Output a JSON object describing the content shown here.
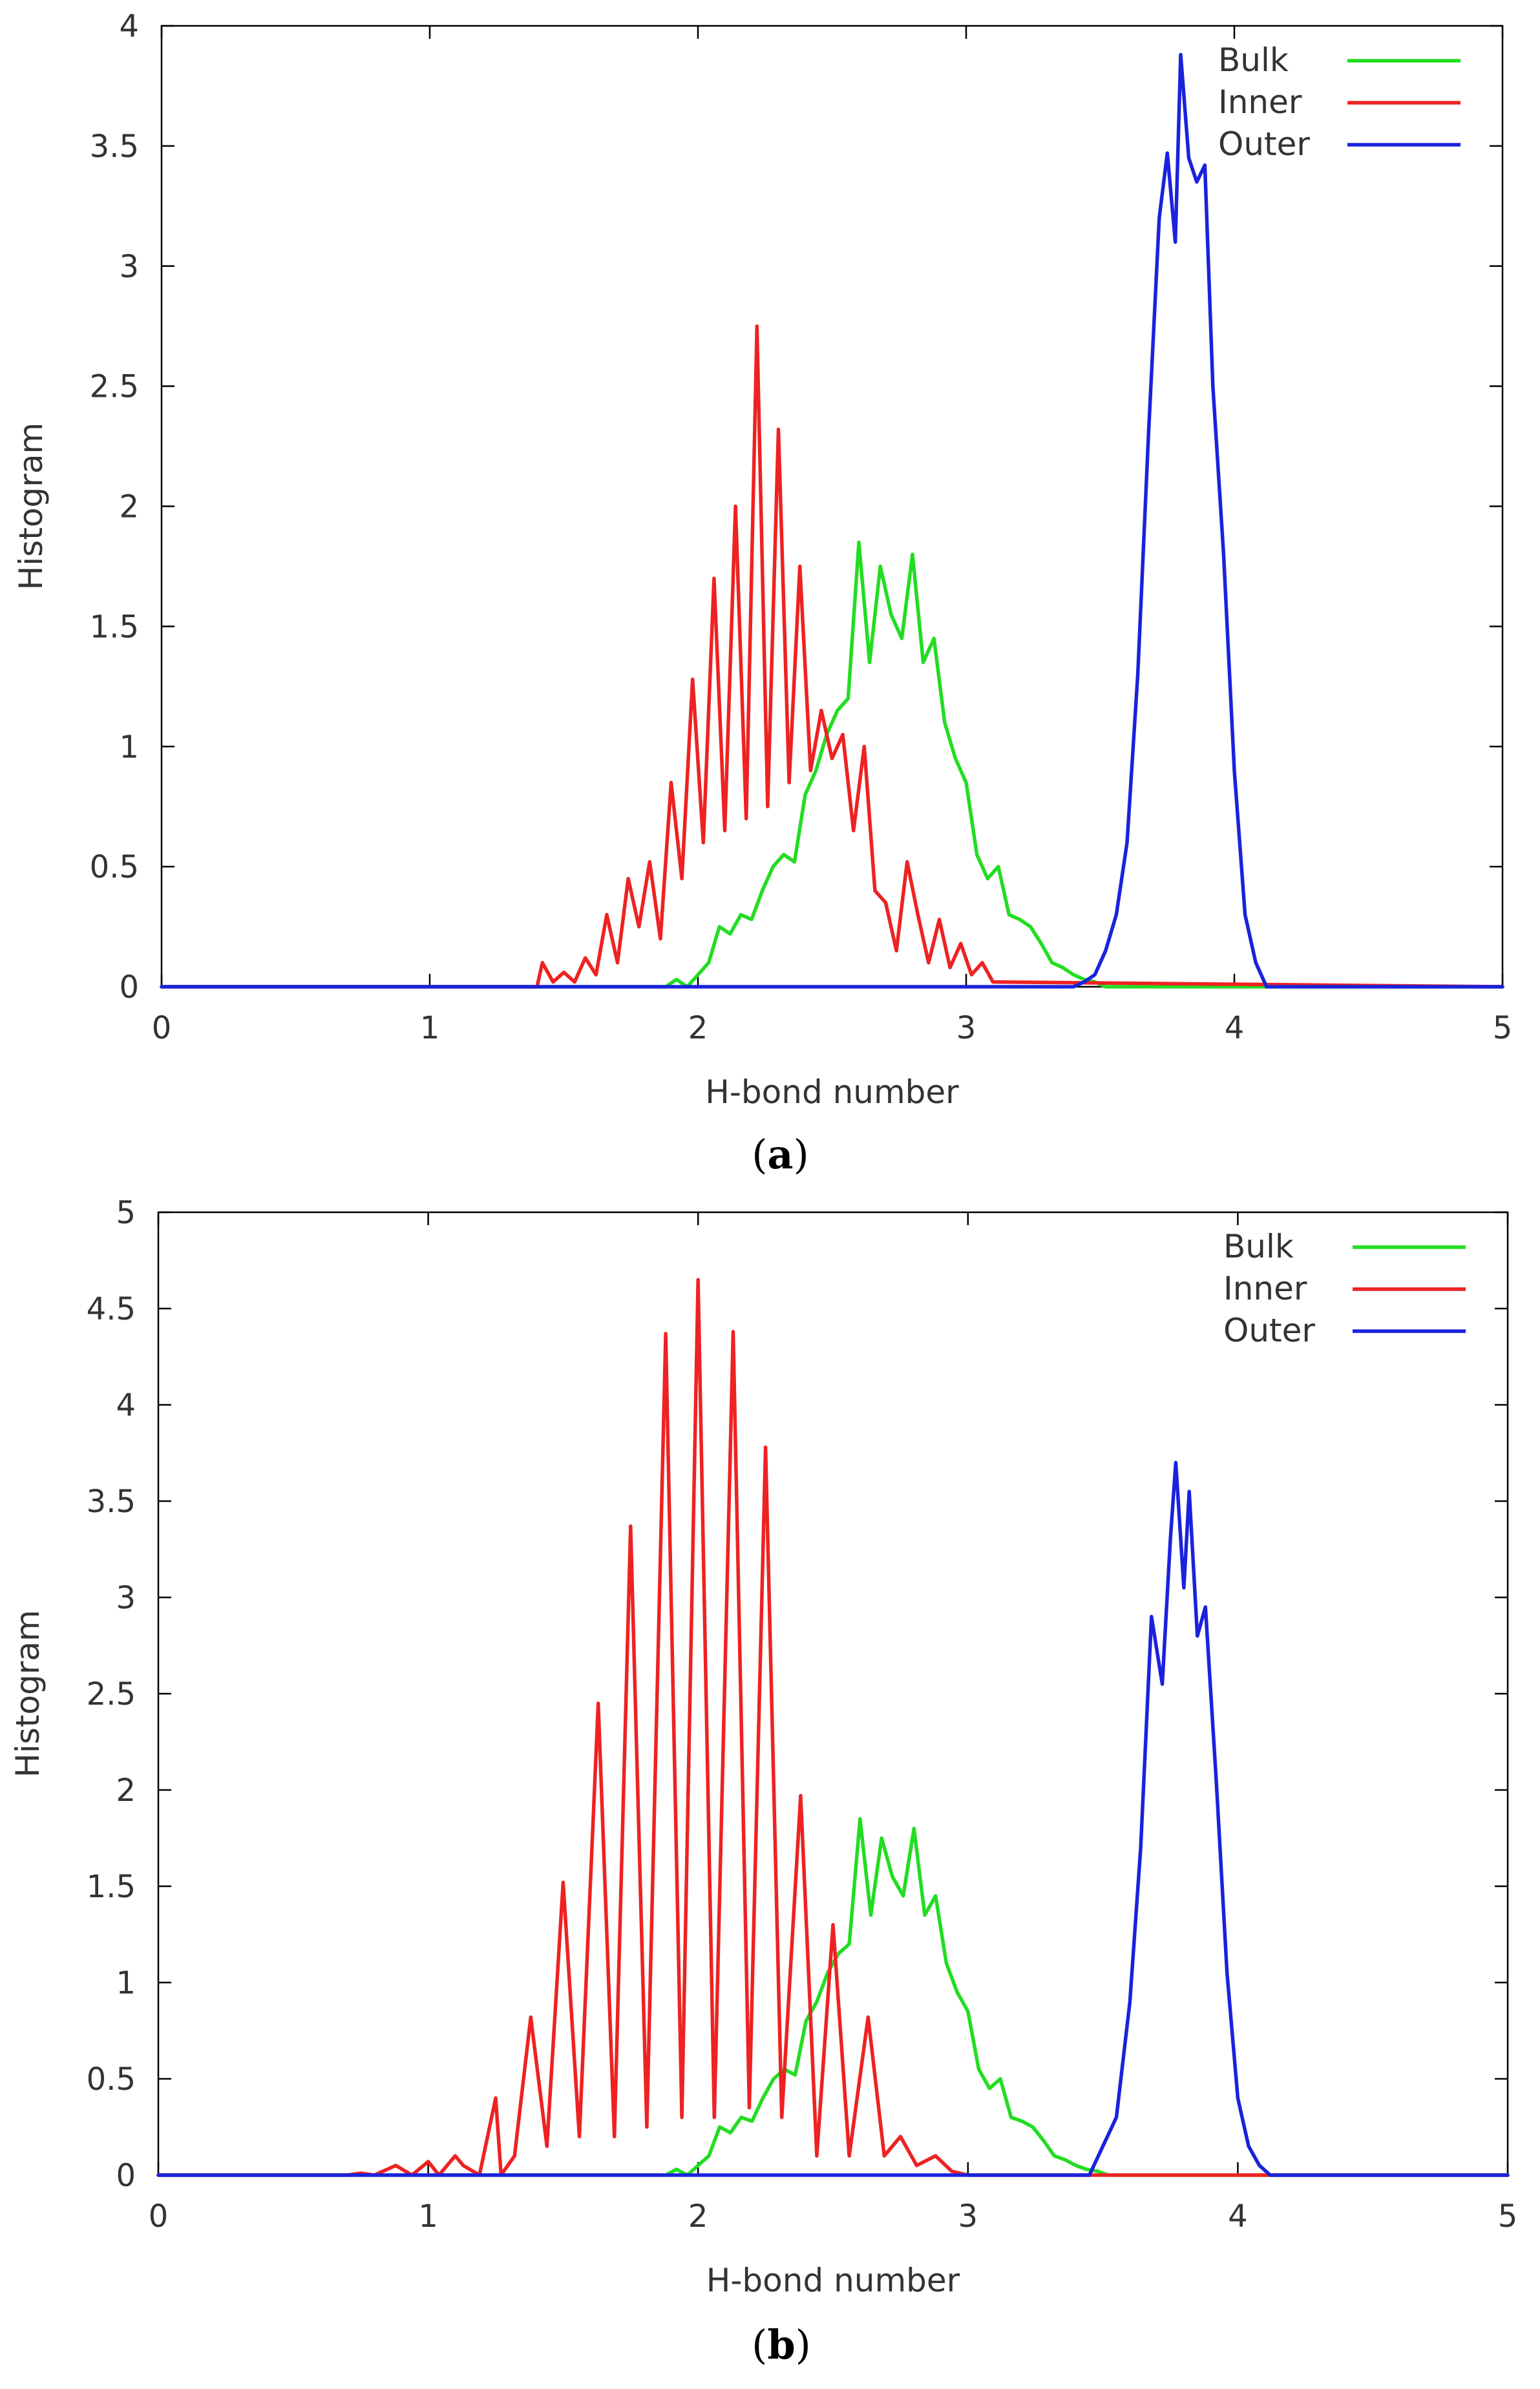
{
  "figure": {
    "panels": [
      "(a)",
      "(b)"
    ]
  },
  "chart_data": [
    {
      "type": "line",
      "panel_label": "(a)",
      "caption_open": "(",
      "caption_letter": "a",
      "caption_close": ")",
      "xlabel": "H-bond number",
      "ylabel": "Histogram",
      "xlim": [
        0,
        5
      ],
      "ylim": [
        0,
        4
      ],
      "xticks": [
        0,
        1,
        2,
        3,
        4,
        5
      ],
      "yticks": [
        0,
        0.5,
        1,
        1.5,
        2,
        2.5,
        3,
        3.5,
        4
      ],
      "xtick_labels": [
        "0",
        "1",
        "2",
        "3",
        "4",
        "5"
      ],
      "ytick_labels": [
        "0",
        "0.5",
        "1",
        "1.5",
        "2",
        "2.5",
        "3",
        "3.5",
        "4"
      ],
      "legend_position": "top-right",
      "series": [
        {
          "name": "Bulk",
          "color": "#22dd22",
          "x": [
            0,
            1.88,
            1.92,
            1.96,
            2.0,
            2.04,
            2.08,
            2.12,
            2.16,
            2.2,
            2.24,
            2.28,
            2.32,
            2.36,
            2.4,
            2.44,
            2.48,
            2.52,
            2.56,
            2.6,
            2.64,
            2.68,
            2.72,
            2.76,
            2.8,
            2.84,
            2.88,
            2.92,
            2.96,
            3.0,
            3.04,
            3.08,
            3.12,
            3.16,
            3.2,
            3.24,
            3.28,
            3.32,
            3.36,
            3.4,
            3.44,
            3.48,
            3.52,
            5
          ],
          "values": [
            0,
            0,
            0.03,
            0,
            0.05,
            0.1,
            0.25,
            0.22,
            0.3,
            0.28,
            0.4,
            0.5,
            0.55,
            0.52,
            0.8,
            0.9,
            1.05,
            1.15,
            1.2,
            1.85,
            1.35,
            1.75,
            1.55,
            1.45,
            1.8,
            1.35,
            1.45,
            1.1,
            0.95,
            0.85,
            0.55,
            0.45,
            0.5,
            0.3,
            0.28,
            0.25,
            0.18,
            0.1,
            0.08,
            0.05,
            0.03,
            0.02,
            0,
            0
          ]
        },
        {
          "name": "Inner",
          "color": "#ee2222",
          "x": [
            0,
            1.4,
            1.42,
            1.46,
            1.5,
            1.54,
            1.58,
            1.62,
            1.66,
            1.7,
            1.74,
            1.78,
            1.82,
            1.86,
            1.9,
            1.94,
            1.98,
            2.02,
            2.06,
            2.1,
            2.14,
            2.18,
            2.22,
            2.26,
            2.3,
            2.34,
            2.38,
            2.42,
            2.46,
            2.5,
            2.54,
            2.58,
            2.62,
            2.66,
            2.7,
            2.74,
            2.78,
            2.82,
            2.86,
            2.9,
            2.94,
            2.98,
            3.02,
            3.06,
            3.1,
            5
          ],
          "values": [
            0,
            0,
            0.1,
            0.02,
            0.06,
            0.02,
            0.12,
            0.05,
            0.3,
            0.1,
            0.45,
            0.25,
            0.52,
            0.2,
            0.85,
            0.45,
            1.28,
            0.6,
            1.7,
            0.65,
            2.0,
            0.7,
            2.75,
            0.75,
            2.32,
            0.85,
            1.75,
            0.9,
            1.15,
            0.95,
            1.05,
            0.65,
            1.0,
            0.4,
            0.35,
            0.15,
            0.52,
            0.3,
            0.1,
            0.28,
            0.08,
            0.18,
            0.05,
            0.1,
            0.02,
            0
          ]
        },
        {
          "name": "Outer",
          "color": "#1a22dd",
          "x": [
            0,
            3.4,
            3.44,
            3.48,
            3.52,
            3.56,
            3.6,
            3.64,
            3.68,
            3.72,
            3.75,
            3.78,
            3.8,
            3.83,
            3.86,
            3.89,
            3.92,
            3.96,
            4.0,
            4.04,
            4.08,
            4.12,
            5
          ],
          "values": [
            0,
            0,
            0.02,
            0.05,
            0.15,
            0.3,
            0.6,
            1.3,
            2.3,
            3.2,
            3.47,
            3.1,
            3.88,
            3.45,
            3.35,
            3.42,
            2.5,
            1.8,
            0.9,
            0.3,
            0.1,
            0,
            0
          ]
        }
      ]
    },
    {
      "type": "line",
      "panel_label": "(b)",
      "caption_open": "(",
      "caption_letter": "b",
      "caption_close": ")",
      "xlabel": "H-bond number",
      "ylabel": "Histogram",
      "xlim": [
        0,
        5
      ],
      "ylim": [
        0,
        5
      ],
      "xticks": [
        0,
        1,
        2,
        3,
        4,
        5
      ],
      "yticks": [
        0,
        0.5,
        1,
        1.5,
        2,
        2.5,
        3,
        3.5,
        4,
        4.5,
        5
      ],
      "xtick_labels": [
        "0",
        "1",
        "2",
        "3",
        "4",
        "5"
      ],
      "ytick_labels": [
        "0",
        "0.5",
        "1",
        "1.5",
        "2",
        "2.5",
        "3",
        "3.5",
        "4",
        "4.5",
        "5"
      ],
      "legend_position": "top-right",
      "series": [
        {
          "name": "Bulk",
          "color": "#22dd22",
          "x": [
            0,
            1.88,
            1.92,
            1.96,
            2.0,
            2.04,
            2.08,
            2.12,
            2.16,
            2.2,
            2.24,
            2.28,
            2.32,
            2.36,
            2.4,
            2.44,
            2.48,
            2.52,
            2.56,
            2.6,
            2.64,
            2.68,
            2.72,
            2.76,
            2.8,
            2.84,
            2.88,
            2.92,
            2.96,
            3.0,
            3.04,
            3.08,
            3.12,
            3.16,
            3.2,
            3.24,
            3.28,
            3.32,
            3.36,
            3.4,
            3.44,
            3.48,
            3.52,
            5
          ],
          "values": [
            0,
            0,
            0.03,
            0,
            0.05,
            0.1,
            0.25,
            0.22,
            0.3,
            0.28,
            0.4,
            0.5,
            0.55,
            0.52,
            0.8,
            0.9,
            1.05,
            1.15,
            1.2,
            1.85,
            1.35,
            1.75,
            1.55,
            1.45,
            1.8,
            1.35,
            1.45,
            1.1,
            0.95,
            0.85,
            0.55,
            0.45,
            0.5,
            0.3,
            0.28,
            0.25,
            0.18,
            0.1,
            0.08,
            0.05,
            0.03,
            0.02,
            0,
            0
          ]
        },
        {
          "name": "Inner",
          "color": "#ee2222",
          "x": [
            0,
            0.7,
            0.75,
            0.8,
            0.88,
            0.94,
            1.0,
            1.04,
            1.1,
            1.13,
            1.19,
            1.25,
            1.27,
            1.32,
            1.38,
            1.44,
            1.5,
            1.56,
            1.63,
            1.69,
            1.75,
            1.81,
            1.88,
            1.94,
            2.0,
            2.06,
            2.13,
            2.19,
            2.25,
            2.31,
            2.38,
            2.44,
            2.5,
            2.56,
            2.63,
            2.69,
            2.75,
            2.81,
            2.88,
            2.94,
            3.0,
            5
          ],
          "values": [
            0,
            0,
            0.01,
            0,
            0.05,
            0,
            0.07,
            0,
            0.1,
            0.05,
            0,
            0.4,
            0,
            0.1,
            0.82,
            0.15,
            1.52,
            0.2,
            2.45,
            0.2,
            3.37,
            0.25,
            4.37,
            0.3,
            4.65,
            0.3,
            4.38,
            0.35,
            3.78,
            0.3,
            1.97,
            0.1,
            1.3,
            0.1,
            0.82,
            0.1,
            0.2,
            0.05,
            0.1,
            0.02,
            0,
            0
          ]
        },
        {
          "name": "Outer",
          "color": "#1a22dd",
          "x": [
            0,
            3.45,
            3.5,
            3.55,
            3.6,
            3.64,
            3.68,
            3.72,
            3.75,
            3.77,
            3.8,
            3.82,
            3.85,
            3.88,
            3.92,
            3.96,
            4.0,
            4.04,
            4.08,
            4.12,
            5
          ],
          "values": [
            0,
            0,
            0.15,
            0.3,
            0.9,
            1.7,
            2.9,
            2.55,
            3.3,
            3.7,
            3.05,
            3.55,
            2.8,
            2.95,
            2.05,
            1.05,
            0.4,
            0.15,
            0.05,
            0,
            0
          ]
        }
      ]
    }
  ]
}
